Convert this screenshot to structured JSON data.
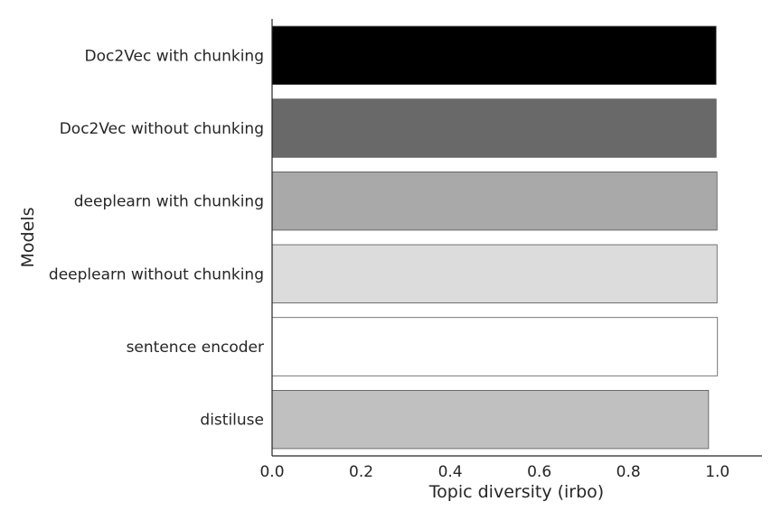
{
  "chart_data": {
    "type": "bar",
    "orientation": "horizontal",
    "categories": [
      "Doc2Vec with chunking",
      "Doc2Vec without chunking",
      "deeplearn with chunking",
      "deeplearn without chunking",
      "sentence encoder",
      "distiluse"
    ],
    "values": [
      0.997,
      0.997,
      0.999,
      0.999,
      1.0,
      0.98
    ],
    "colors": [
      "#000000",
      "#696969",
      "#a9a9a9",
      "#dcdcdc",
      "#ffffff",
      "#c0c0c0"
    ],
    "xlabel": "Topic diversity (irbo)",
    "ylabel": "Models",
    "xlim": [
      0,
      1.1
    ],
    "xticks": [
      "0.0",
      "0.2",
      "0.4",
      "0.6",
      "0.8",
      "1.0"
    ],
    "grid": false
  }
}
